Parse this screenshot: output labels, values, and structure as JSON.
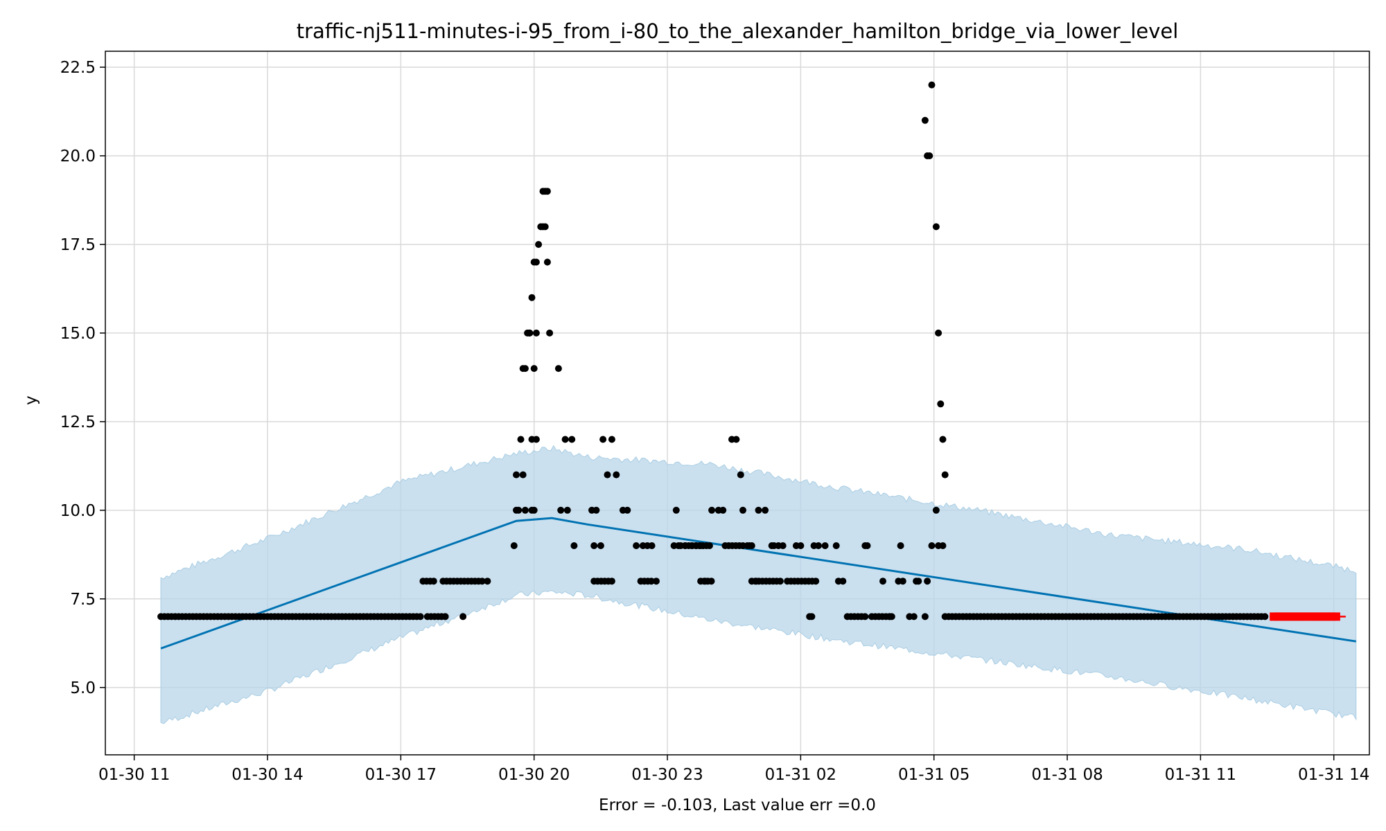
{
  "chart_data": {
    "type": "scatter",
    "title": "traffic-nj511-minutes-i-95_from_i-80_to_the_alexander_hamilton_bridge_via_lower_level",
    "xlabel": "Error = -0.103, Last value err =0.0",
    "ylabel": "y",
    "x_unit": "hours since 01-30 11:00",
    "xlim": [
      -0.65,
      27.8
    ],
    "ylim": [
      3.1,
      22.95
    ],
    "grid": true,
    "x_ticks": [
      {
        "x": 0,
        "label": "01-30 11"
      },
      {
        "x": 3,
        "label": "01-30 14"
      },
      {
        "x": 6,
        "label": "01-30 17"
      },
      {
        "x": 9,
        "label": "01-30 20"
      },
      {
        "x": 12,
        "label": "01-30 23"
      },
      {
        "x": 15,
        "label": "01-31 02"
      },
      {
        "x": 18,
        "label": "01-31 05"
      },
      {
        "x": 21,
        "label": "01-31 08"
      },
      {
        "x": 24,
        "label": "01-31 11"
      },
      {
        "x": 27,
        "label": "01-31 14"
      }
    ],
    "y_ticks": [
      {
        "y": 5.0,
        "label": "5.0"
      },
      {
        "y": 7.5,
        "label": "7.5"
      },
      {
        "y": 10.0,
        "label": "10.0"
      },
      {
        "y": 12.5,
        "label": "12.5"
      },
      {
        "y": 15.0,
        "label": "15.0"
      },
      {
        "y": 17.5,
        "label": "17.5"
      },
      {
        "y": 20.0,
        "label": "20.0"
      },
      {
        "y": 22.5,
        "label": "22.5"
      }
    ],
    "colors": {
      "observed": "#000000",
      "forecast_line": "#0072b2",
      "interval_fill": "#b8d6ea",
      "future_points": "#ff0000",
      "grid": "#d9d9d9"
    },
    "forecast": {
      "name": "trend",
      "x": [
        0.6,
        8.6,
        9.4,
        10.2,
        27.5
      ],
      "y": [
        6.1,
        9.7,
        9.78,
        9.6,
        6.3
      ]
    },
    "interval": {
      "name": "uncertainty",
      "x": [
        0.6,
        3.0,
        6.0,
        8.6,
        9.4,
        10.2,
        13.0,
        16.0,
        19.0,
        22.0,
        25.0,
        27.5
      ],
      "lower": [
        4.0,
        4.9,
        6.4,
        7.6,
        7.7,
        7.6,
        6.9,
        6.3,
        5.8,
        5.3,
        4.7,
        4.15
      ],
      "upper": [
        8.1,
        9.2,
        10.8,
        11.6,
        11.75,
        11.5,
        11.3,
        10.6,
        10.0,
        9.3,
        8.9,
        8.3
      ]
    },
    "observed_runs": [
      {
        "x_start": 0.6,
        "x_end": 6.45,
        "step": 0.08,
        "y": 7.0
      },
      {
        "x_start": 6.6,
        "x_end": 7.05,
        "step": 0.08,
        "y": 7.0
      },
      {
        "x_start": 6.5,
        "x_end": 6.75,
        "step": 0.08,
        "y": 8.0
      },
      {
        "x_start": 6.95,
        "x_end": 7.85,
        "step": 0.08,
        "y": 8.0
      },
      {
        "x_start": 10.35,
        "x_end": 10.8,
        "step": 0.08,
        "y": 8.0
      },
      {
        "x_start": 11.4,
        "x_end": 11.65,
        "step": 0.08,
        "y": 8.0
      },
      {
        "x_start": 12.75,
        "x_end": 13.05,
        "step": 0.08,
        "y": 8.0
      },
      {
        "x_start": 13.9,
        "x_end": 14.6,
        "step": 0.08,
        "y": 8.0
      },
      {
        "x_start": 14.7,
        "x_end": 15.4,
        "step": 0.08,
        "y": 8.0
      },
      {
        "x_start": 12.4,
        "x_end": 12.95,
        "step": 0.08,
        "y": 9.0
      },
      {
        "x_start": 13.3,
        "x_end": 13.75,
        "step": 0.08,
        "y": 9.0
      },
      {
        "x_start": 16.05,
        "x_end": 16.45,
        "step": 0.08,
        "y": 7.0
      },
      {
        "x_start": 16.6,
        "x_end": 17.0,
        "step": 0.08,
        "y": 7.0
      },
      {
        "x_start": 18.25,
        "x_end": 25.5,
        "step": 0.08,
        "y": 7.0
      }
    ],
    "observed": {
      "x": [
        7.0,
        7.4,
        7.95,
        8.55,
        8.6,
        8.65,
        8.6,
        8.7,
        8.75,
        8.8,
        8.85,
        8.9,
        9.05,
        9.0,
        8.95,
        8.9,
        8.8,
        8.75,
        9.3,
        9.25,
        9.2,
        9.15,
        9.1,
        9.05,
        9.0,
        9.05,
        8.95,
        9.0,
        8.95,
        9.25,
        9.3,
        9.2,
        9.35,
        9.55,
        9.7,
        9.85,
        9.6,
        9.75,
        9.9,
        10.3,
        10.4,
        10.35,
        10.5,
        10.55,
        10.65,
        10.75,
        10.85,
        11.0,
        11.1,
        11.3,
        11.45,
        11.55,
        11.65,
        11.75,
        12.15,
        12.2,
        12.25,
        12.3,
        12.4,
        12.55,
        12.65,
        12.75,
        12.85,
        12.95,
        13.0,
        13.15,
        13.25,
        13.45,
        13.55,
        13.65,
        13.7,
        13.8,
        13.85,
        13.9,
        14.0,
        14.05,
        14.2,
        14.35,
        14.4,
        14.5,
        14.6,
        14.9,
        15.0,
        15.3,
        15.4,
        15.55,
        15.8,
        15.85,
        15.95,
        16.45,
        16.5,
        15.2,
        15.25,
        16.85,
        17.2,
        17.25,
        17.3,
        17.45,
        17.55,
        17.6,
        17.65,
        17.8,
        17.85,
        17.95,
        18.05,
        18.1,
        18.2,
        17.0,
        17.05
      ],
      "y": [
        7.0,
        7.0,
        8.0,
        9.0,
        10.0,
        10.0,
        11.0,
        12.0,
        14.0,
        14.0,
        15.0,
        15.0,
        17.0,
        17.0,
        16.0,
        15.0,
        10.0,
        11.0,
        19.0,
        19.0,
        18.0,
        18.0,
        17.5,
        15.0,
        14.0,
        12.0,
        12.0,
        10.0,
        10.0,
        18.0,
        17.0,
        19.0,
        15.0,
        14.0,
        12.0,
        12.0,
        10.0,
        10.0,
        9.0,
        10.0,
        10.0,
        9.0,
        9.0,
        12.0,
        11.0,
        12.0,
        11.0,
        10.0,
        10.0,
        9.0,
        9.0,
        9.0,
        9.0,
        8.0,
        9.0,
        10.0,
        9.0,
        9.0,
        9.0,
        9.0,
        9.0,
        9.0,
        8.0,
        9.0,
        10.0,
        10.0,
        10.0,
        12.0,
        12.0,
        11.0,
        10.0,
        9.0,
        9.0,
        9.0,
        8.0,
        10.0,
        10.0,
        9.0,
        9.0,
        9.0,
        9.0,
        9.0,
        9.0,
        9.0,
        9.0,
        9.0,
        9.0,
        8.0,
        8.0,
        9.0,
        9.0,
        7.0,
        7.0,
        8.0,
        8.0,
        9.0,
        8.0,
        7.0,
        7.0,
        8.0,
        8.0,
        7.0,
        8.0,
        9.0,
        10.0,
        9.0,
        9.0,
        7.0,
        7.0
      ]
    },
    "observed_peak2": {
      "x": [
        17.8,
        17.85,
        17.9,
        17.95,
        18.05,
        18.1,
        18.15,
        18.2,
        18.25
      ],
      "y": [
        21.0,
        20.0,
        20.0,
        22.0,
        18.0,
        15.0,
        13.0,
        12.0,
        11.0
      ]
    },
    "future": {
      "name": "future",
      "x_start": 25.65,
      "x_end": 27.05,
      "step": 0.1,
      "y": 7.0
    }
  }
}
